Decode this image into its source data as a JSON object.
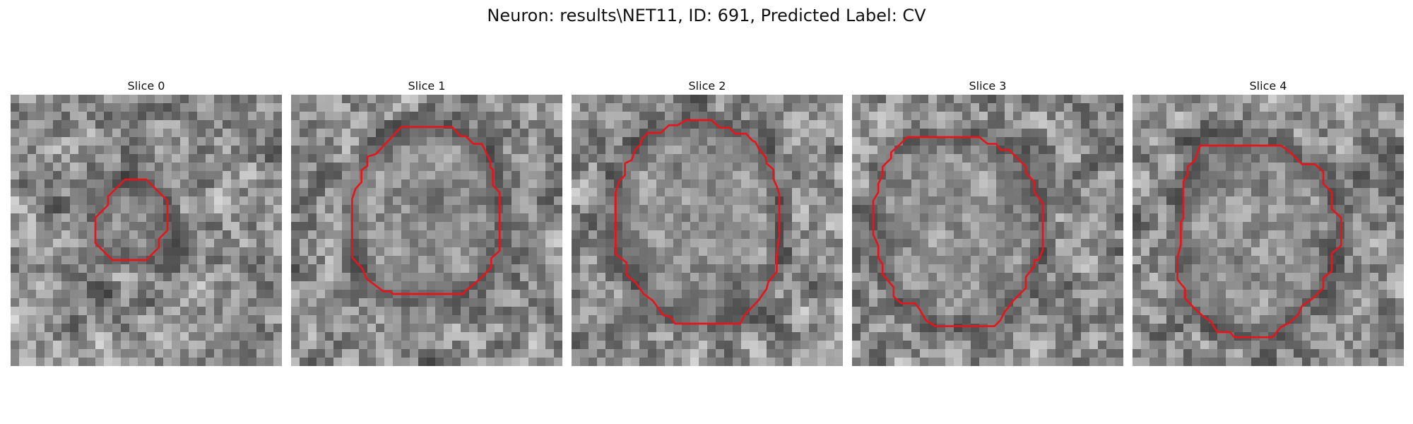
{
  "figure": {
    "title": "Neuron: results\\NET11, ID: 691, Predicted Label: CV"
  },
  "colors": {
    "contour": "#e8141b",
    "background": "#ffffff"
  },
  "image_grid_size": 32,
  "panels": [
    {
      "title": "Slice 0",
      "contour": [
        [
          13.5,
          10
        ],
        [
          16,
          10
        ],
        [
          18.5,
          12.5
        ],
        [
          18.5,
          16
        ],
        [
          17.5,
          17
        ],
        [
          17.5,
          18
        ],
        [
          16,
          19.5
        ],
        [
          12,
          19.5
        ],
        [
          10,
          17.5
        ],
        [
          10,
          14.5
        ],
        [
          11.5,
          13
        ],
        [
          11.5,
          12
        ]
      ]
    },
    {
      "title": "Slice 1",
      "contour": [
        [
          13,
          3.8
        ],
        [
          19,
          3.8
        ],
        [
          20,
          4.9
        ],
        [
          20.6,
          4.9
        ],
        [
          21.5,
          5.8
        ],
        [
          22.5,
          5.8
        ],
        [
          23.5,
          7.8
        ],
        [
          23.5,
          8.6
        ],
        [
          23.8,
          8.8
        ],
        [
          23.8,
          10.7
        ],
        [
          24.6,
          11.5
        ],
        [
          24.6,
          18.4
        ],
        [
          23.6,
          19.3
        ],
        [
          23.6,
          20.4
        ],
        [
          22.2,
          21.8
        ],
        [
          20.6,
          23.1
        ],
        [
          20.3,
          23.5
        ],
        [
          17.5,
          23.5
        ],
        [
          12,
          23.5
        ],
        [
          11.7,
          23.2
        ],
        [
          10.9,
          23.2
        ],
        [
          8.9,
          21.7
        ],
        [
          8.4,
          20.5
        ],
        [
          7.2,
          19.2
        ],
        [
          7.2,
          12.3
        ],
        [
          7.6,
          11.1
        ],
        [
          8.3,
          10.3
        ],
        [
          8.3,
          8.9
        ],
        [
          9,
          8.4
        ],
        [
          9,
          7.3
        ],
        [
          10,
          7
        ]
      ]
    },
    {
      "title": "Slice 2",
      "contour": [
        [
          13.5,
          3
        ],
        [
          16.5,
          3
        ],
        [
          17.5,
          3.9
        ],
        [
          18.6,
          3.9
        ],
        [
          19.3,
          4.6
        ],
        [
          20.6,
          4.6
        ],
        [
          21.3,
          5.4
        ],
        [
          21.7,
          5.6
        ],
        [
          22.1,
          6.4
        ],
        [
          22.9,
          7.4
        ],
        [
          23,
          8.1
        ],
        [
          23.8,
          8.8
        ],
        [
          23.8,
          9.9
        ],
        [
          24.2,
          10.8
        ],
        [
          24.5,
          11.7
        ],
        [
          24.5,
          16.5
        ],
        [
          24.2,
          19
        ],
        [
          24.2,
          20.9
        ],
        [
          23.2,
          22.1
        ],
        [
          23,
          22.9
        ],
        [
          22.5,
          23.6
        ],
        [
          22.1,
          24.2
        ],
        [
          20.4,
          26
        ],
        [
          19.9,
          27
        ],
        [
          12.2,
          27
        ],
        [
          11.7,
          26.2
        ],
        [
          10.8,
          26
        ],
        [
          9.6,
          24.3
        ],
        [
          8.5,
          23.5
        ],
        [
          7.6,
          22.2
        ],
        [
          6.5,
          21.3
        ],
        [
          6.5,
          19.8
        ],
        [
          5.2,
          18.8
        ],
        [
          5.2,
          11.5
        ],
        [
          5.6,
          10.2
        ],
        [
          6.3,
          9.5
        ],
        [
          6.3,
          8.1
        ],
        [
          7.1,
          7.7
        ],
        [
          7.5,
          6.5
        ],
        [
          8.1,
          5.9
        ],
        [
          8.3,
          5.2
        ],
        [
          9,
          4.5
        ],
        [
          10.5,
          4.5
        ],
        [
          11.5,
          3.6
        ],
        [
          12.5,
          3.6
        ]
      ]
    },
    {
      "title": "Slice 3",
      "contour": [
        [
          6.5,
          5
        ],
        [
          15,
          5
        ],
        [
          16,
          5.8
        ],
        [
          17,
          5.8
        ],
        [
          17.5,
          6.5
        ],
        [
          18.5,
          6.5
        ],
        [
          20.5,
          8.5
        ],
        [
          20.5,
          9.2
        ],
        [
          21.5,
          10.3
        ],
        [
          21.5,
          11.5
        ],
        [
          22.5,
          12.8
        ],
        [
          22.5,
          18.3
        ],
        [
          22,
          19.5
        ],
        [
          21.5,
          19.5
        ],
        [
          21.5,
          20.2
        ],
        [
          20.5,
          21.5
        ],
        [
          20.5,
          22.8
        ],
        [
          19,
          24.3
        ],
        [
          18.5,
          25
        ],
        [
          18,
          25.6
        ],
        [
          17.5,
          26.6
        ],
        [
          16.8,
          27.3
        ],
        [
          9.8,
          27.3
        ],
        [
          8.7,
          26.6
        ],
        [
          7.9,
          25.2
        ],
        [
          7.4,
          24.6
        ],
        [
          5.8,
          24.6
        ],
        [
          4.9,
          23.8
        ],
        [
          4.9,
          22.7
        ],
        [
          3.6,
          21.2
        ],
        [
          3.6,
          20
        ],
        [
          3.1,
          19.2
        ],
        [
          3.1,
          17.8
        ],
        [
          2.5,
          16.5
        ],
        [
          2.5,
          12.5
        ],
        [
          3.1,
          11.5
        ],
        [
          3.1,
          10.5
        ],
        [
          3.6,
          9.5
        ],
        [
          3.6,
          8.5
        ],
        [
          4.6,
          7.5
        ],
        [
          4.6,
          6.8
        ],
        [
          5.5,
          6
        ]
      ]
    },
    {
      "title": "Slice 4",
      "contour": [
        [
          8,
          6
        ],
        [
          17.5,
          6
        ],
        [
          18.5,
          6.7
        ],
        [
          20,
          8.2
        ],
        [
          21.5,
          8.2
        ],
        [
          22.5,
          9.1
        ],
        [
          22.5,
          10.5
        ],
        [
          23.5,
          11.5
        ],
        [
          23.5,
          13.5
        ],
        [
          24.6,
          14.5
        ],
        [
          24.6,
          17.8
        ],
        [
          23.5,
          18.7
        ],
        [
          23.5,
          20.8
        ],
        [
          22.5,
          21.6
        ],
        [
          22.5,
          22.8
        ],
        [
          21.3,
          24
        ],
        [
          20,
          24.9
        ],
        [
          19.5,
          26
        ],
        [
          18.5,
          26.9
        ],
        [
          17.5,
          27.4
        ],
        [
          16.5,
          28.6
        ],
        [
          12,
          28.6
        ],
        [
          11.5,
          28
        ],
        [
          10,
          28
        ],
        [
          9.2,
          26.7
        ],
        [
          8.4,
          26.2
        ],
        [
          7.3,
          25.2
        ],
        [
          6.2,
          24
        ],
        [
          6.2,
          22.9
        ],
        [
          5.3,
          21.8
        ],
        [
          5.3,
          19.2
        ],
        [
          5.7,
          17.7
        ],
        [
          5.7,
          15
        ],
        [
          6,
          14.6
        ],
        [
          6,
          10.2
        ],
        [
          6.5,
          9.5
        ],
        [
          6.5,
          8.5
        ],
        [
          7.3,
          7.8
        ]
      ]
    }
  ]
}
